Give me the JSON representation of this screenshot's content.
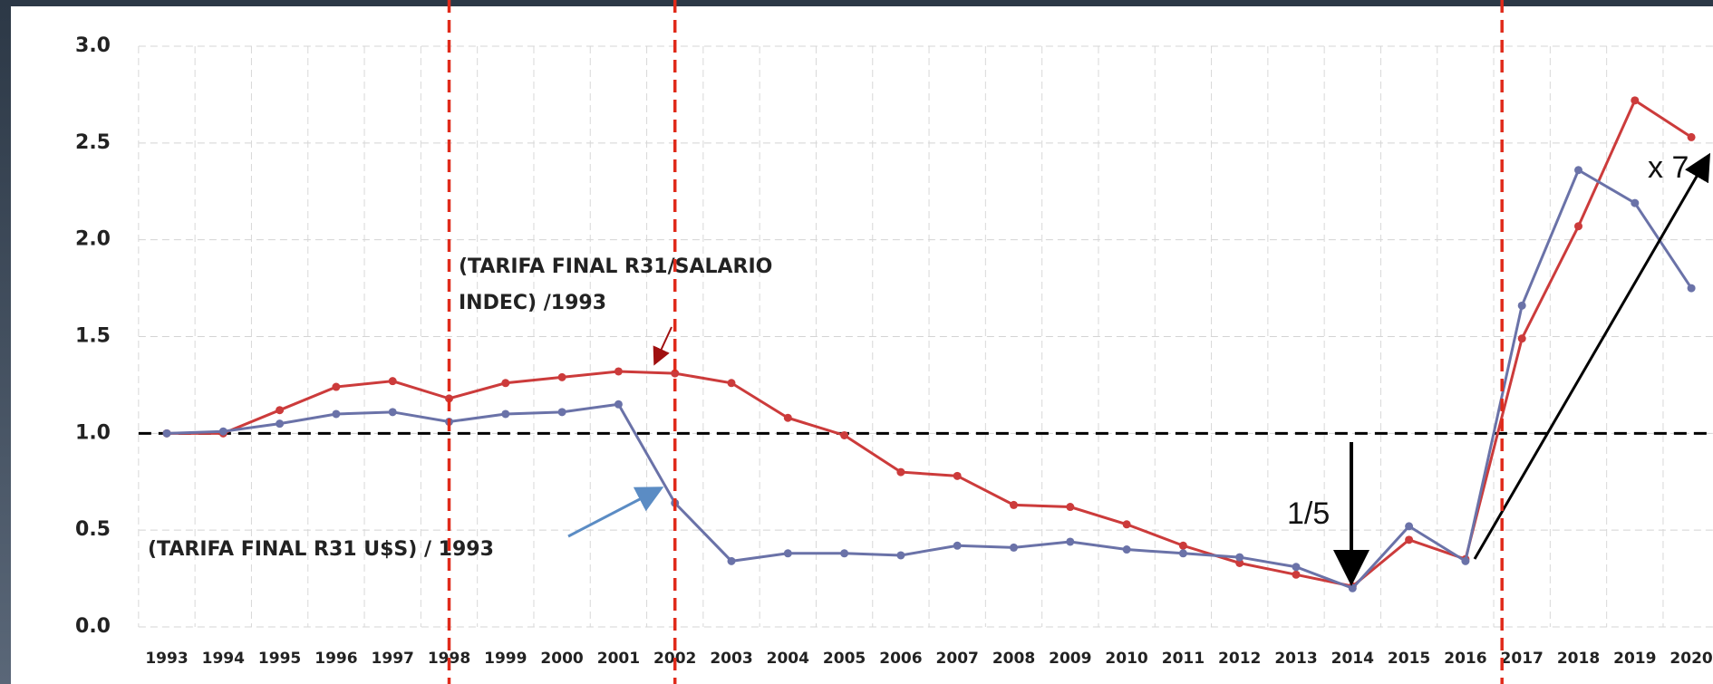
{
  "chart_data": {
    "type": "line",
    "categories": [
      "1993",
      "1994",
      "1995",
      "1996",
      "1997",
      "1998",
      "1999",
      "2000",
      "2001",
      "2002",
      "2003",
      "2004",
      "2005",
      "2006",
      "2007",
      "2008",
      "2009",
      "2010",
      "2011",
      "2012",
      "2013",
      "2014",
      "2015",
      "2016",
      "2017",
      "2018",
      "2019",
      "2020"
    ],
    "series": [
      {
        "color": "#cc3b3b",
        "values": [
          1.0,
          1.0,
          1.12,
          1.24,
          1.27,
          1.18,
          1.26,
          1.29,
          1.32,
          1.31,
          1.26,
          1.08,
          0.99,
          0.8,
          0.78,
          0.63,
          0.62,
          0.53,
          0.42,
          0.33,
          0.27,
          0.21,
          0.45,
          0.35,
          1.49,
          2.07,
          2.72,
          2.53
        ]
      },
      {
        "color": "#6a72a8",
        "values": [
          1.0,
          1.01,
          1.05,
          1.1,
          1.11,
          1.06,
          1.1,
          1.11,
          1.15,
          0.64,
          0.34,
          0.38,
          0.38,
          0.37,
          0.42,
          0.41,
          0.44,
          0.4,
          0.38,
          0.36,
          0.31,
          0.2,
          0.52,
          0.34,
          1.66,
          2.36,
          2.19,
          1.75
        ]
      }
    ],
    "ylim": [
      0,
      3
    ],
    "yticks": [
      {
        "value": 0,
        "label": "0.0"
      },
      {
        "value": 0.5,
        "label": "0.5"
      },
      {
        "value": 1,
        "label": "1.0"
      },
      {
        "value": 1.5,
        "label": "1.5"
      },
      {
        "value": 2,
        "label": "2.0"
      },
      {
        "value": 2.5,
        "label": "2.5"
      },
      {
        "value": 3,
        "label": "3.0"
      }
    ],
    "grid": true,
    "reference_line": 1,
    "vertical_lines": [
      "1998",
      "2002",
      "2017"
    ],
    "annotations": [
      "(TARIFA FINAL R31/SALARIO",
      "INDEC) /1993",
      "(TARIFA FINAL R31 U$S) / 1993",
      "1/5",
      "x 7"
    ]
  }
}
